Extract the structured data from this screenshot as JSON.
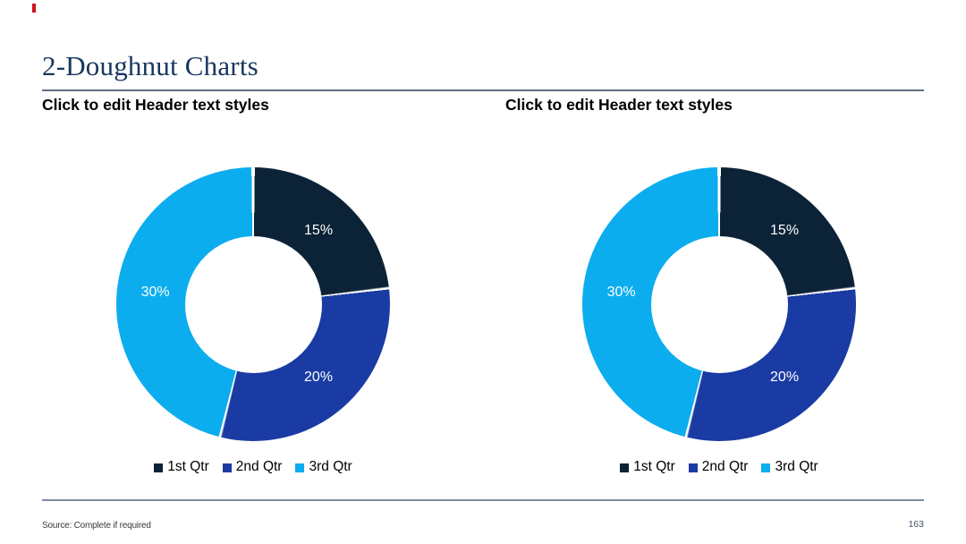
{
  "slide": {
    "title": "2-Doughnut Charts",
    "source_note": "Source: Complete if required",
    "page_number": "163",
    "accent_marker_color": "#d01317",
    "title_color": "#17375e",
    "rule_color": "#5d7080"
  },
  "chart_data": [
    {
      "type": "doughnut",
      "title": "Click to edit Header text styles",
      "categories": [
        "1st Qtr",
        "2nd Qtr",
        "3rd Qtr"
      ],
      "values": [
        15,
        20,
        30
      ],
      "labels": [
        "15%",
        "20%",
        "30%"
      ],
      "colors": [
        "#0c2337",
        "#1a3ba3",
        "#0cadee"
      ],
      "legend_position": "bottom",
      "start_angle_deg": 0,
      "inner_radius_ratio": 0.5,
      "label_color": "#ffffff"
    },
    {
      "type": "doughnut",
      "title": "Click to edit Header text styles",
      "categories": [
        "1st Qtr",
        "2nd Qtr",
        "3rd Qtr"
      ],
      "values": [
        15,
        20,
        30
      ],
      "labels": [
        "15%",
        "20%",
        "30%"
      ],
      "colors": [
        "#0c2337",
        "#1a3ba3",
        "#0cadee"
      ],
      "legend_position": "bottom",
      "start_angle_deg": 0,
      "inner_radius_ratio": 0.5,
      "label_color": "#ffffff"
    }
  ]
}
